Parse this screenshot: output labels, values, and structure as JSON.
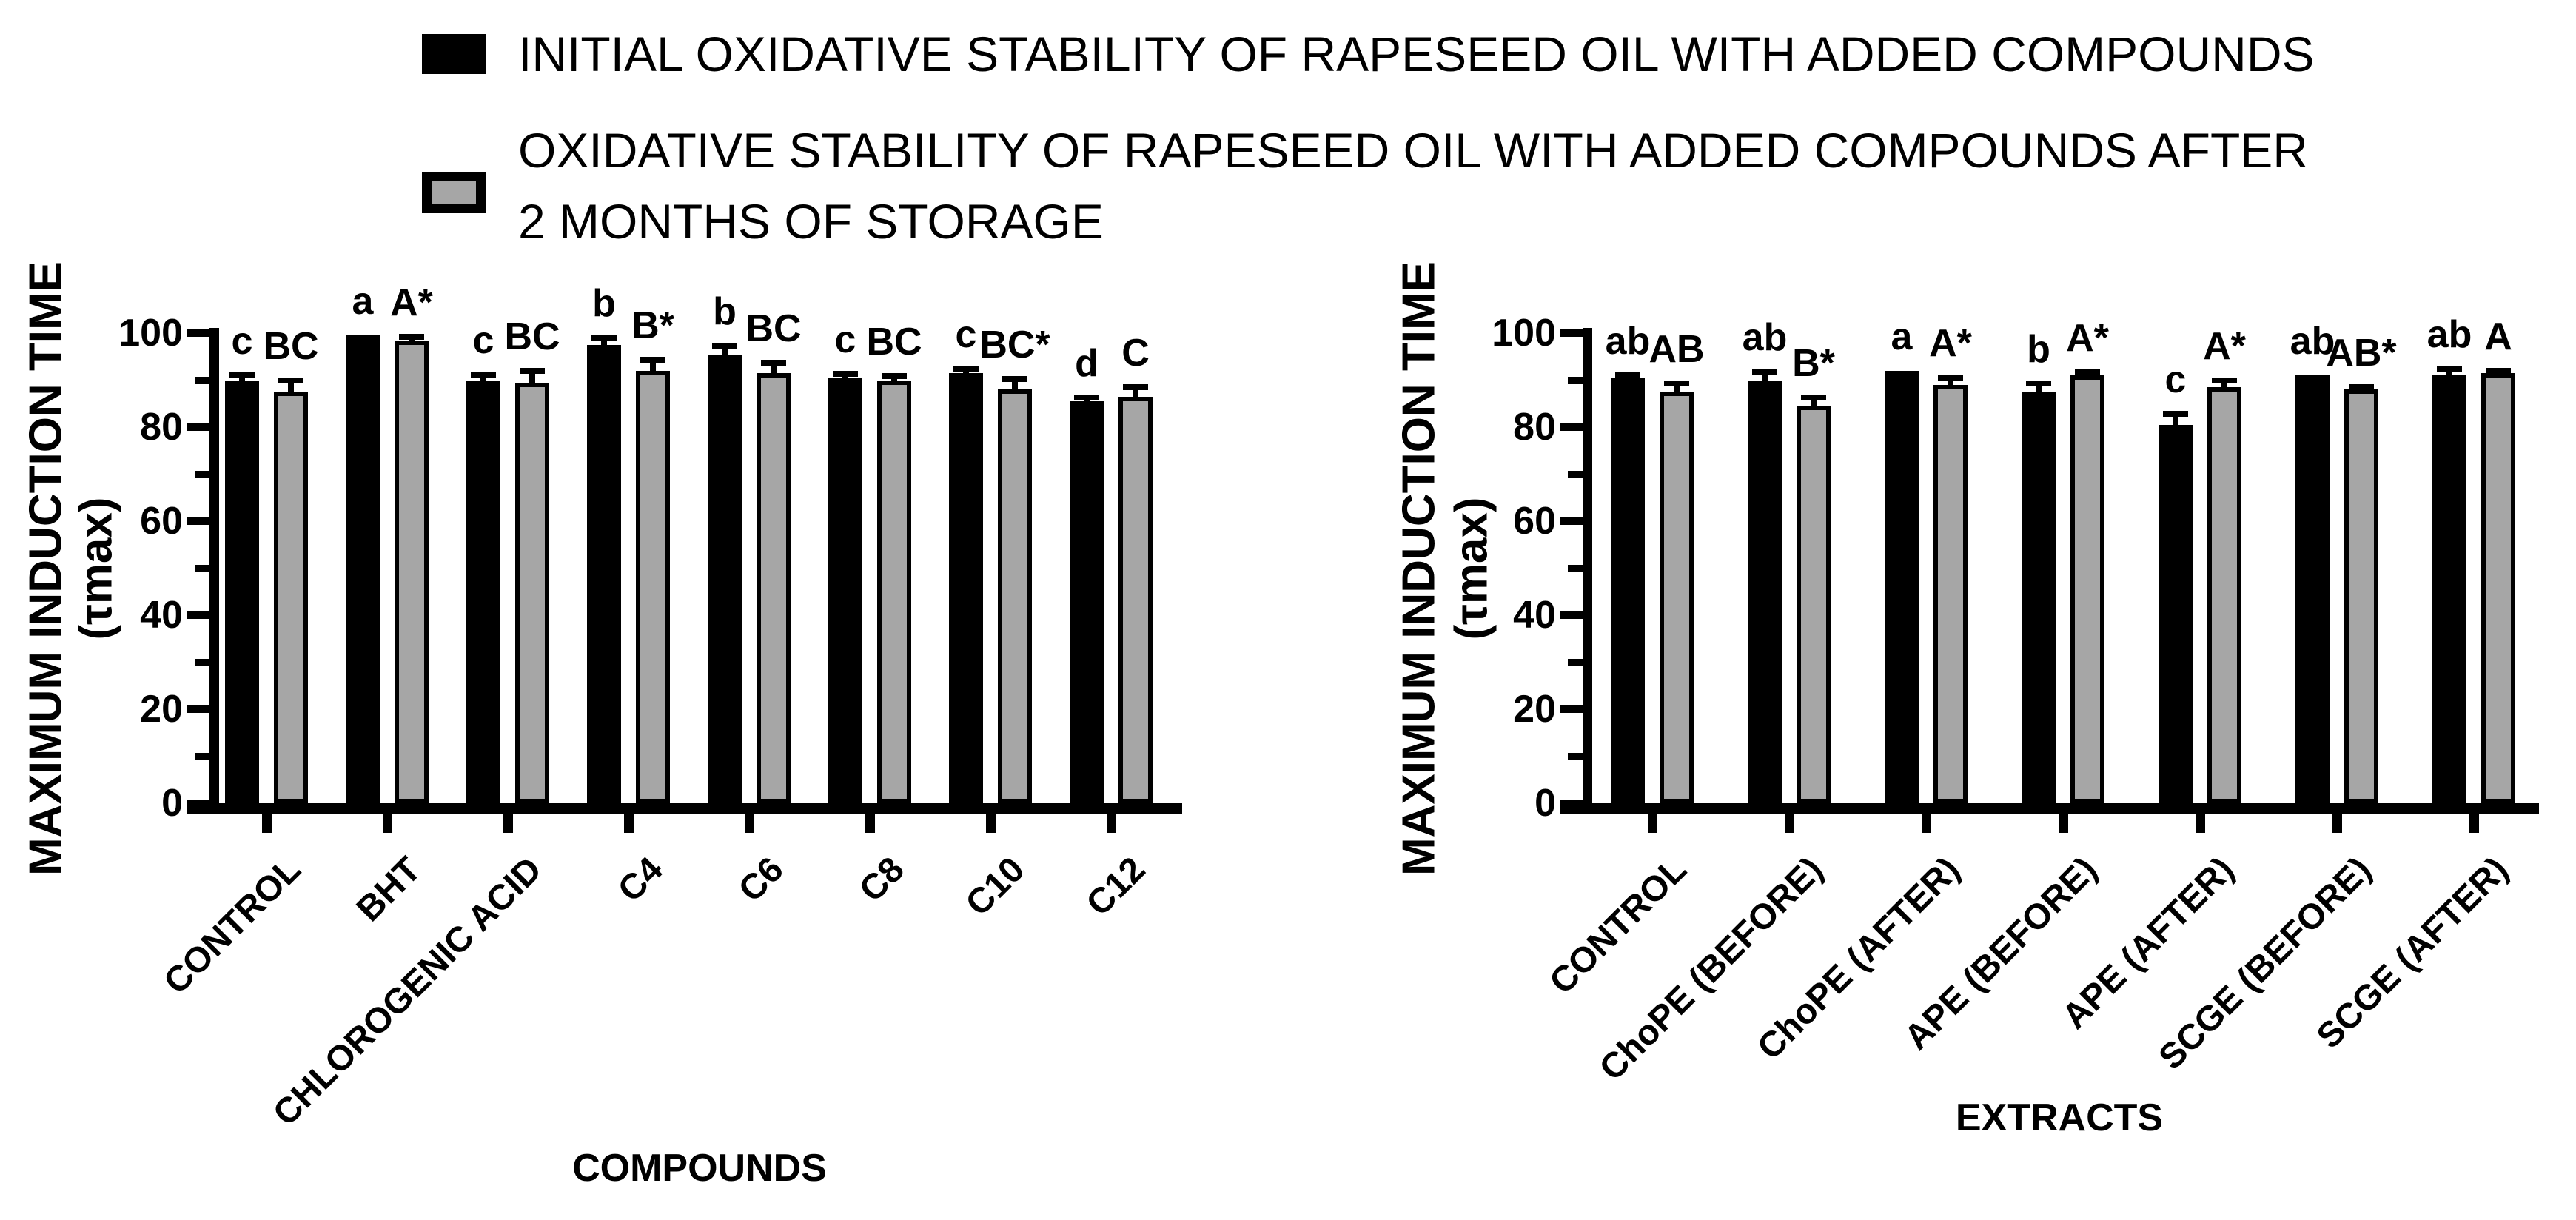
{
  "figure": {
    "background": "#ffffff"
  },
  "colors": {
    "series_initial": "#000000",
    "series_after": "#a6a6a6",
    "axis": "#000000"
  },
  "legend": {
    "position": "top",
    "items": [
      {
        "swatch": "black-filled-square",
        "color": "#000000",
        "lines": [
          "INITIAL OXIDATIVE STABILITY OF RAPESEED OIL WITH ADDED COMPOUNDS"
        ]
      },
      {
        "swatch": "gray-filled-square-black-border",
        "color": "#a6a6a6",
        "lines": [
          "OXIDATIVE STABILITY OF RAPESEED OIL WITH ADDED COMPOUNDS AFTER",
          "2 MONTHS OF STORAGE"
        ]
      }
    ]
  },
  "chart_data": [
    {
      "type": "bar",
      "panel": "left",
      "title": "",
      "xlabel": "COMPOUNDS",
      "ylabel": "MAXIMUM INDUCTION TIME (τmax)",
      "ylabel_lines": [
        "MAXIMUM INDUCTION TIME",
        "(τmax)"
      ],
      "ylim": [
        0,
        100
      ],
      "yticks_major": [
        0,
        20,
        40,
        60,
        80,
        100
      ],
      "yticks_minor": [
        10,
        30,
        50,
        70,
        90
      ],
      "grid": false,
      "legend_position": "top",
      "categories": [
        "CONTROL",
        "BHT",
        "CHLOROGENIC ACID",
        "C4",
        "C6",
        "C8",
        "C10",
        "C12"
      ],
      "series": [
        {
          "name": "INITIAL OXIDATIVE STABILITY OF RAPESEED OIL WITH ADDED COMPOUNDS",
          "color": "#000000",
          "values": [
            90,
            99.5,
            90,
            97.5,
            95.5,
            90.5,
            91.5,
            85.5
          ],
          "errors": [
            1,
            0,
            1.2,
            1.5,
            1.8,
            0.8,
            1,
            0.8
          ],
          "sig_labels": [
            "c",
            "a",
            "c",
            "b",
            "b",
            "c",
            "c",
            "d"
          ]
        },
        {
          "name": "OXIDATIVE STABILITY OF RAPESEED OIL WITH ADDED COMPOUNDS AFTER 2 MONTHS OF STORAGE",
          "color": "#a6a6a6",
          "values": [
            87.5,
            98.5,
            89.5,
            92,
            91.5,
            90,
            88,
            86.5
          ],
          "errors": [
            2.5,
            0.7,
            2.5,
            2.3,
            2.2,
            0.8,
            2.2,
            2
          ],
          "sig_labels": [
            "BC",
            "A*",
            "BC",
            "B*",
            "BC",
            "BC",
            "BC*",
            "C"
          ]
        }
      ]
    },
    {
      "type": "bar",
      "panel": "right",
      "title": "",
      "xlabel": "EXTRACTS",
      "ylabel": "MAXIMUM INDUCTION TIME (τmax)",
      "ylabel_lines": [
        "MAXIMUM INDUCTION TIME",
        "(τmax)"
      ],
      "ylim": [
        0,
        100
      ],
      "yticks_major": [
        0,
        20,
        40,
        60,
        80,
        100
      ],
      "yticks_minor": [
        10,
        30,
        50,
        70,
        90
      ],
      "grid": false,
      "legend_position": "top",
      "categories": [
        "CONTROL",
        "ChoPE (BEFORE)",
        "ChoPE (AFTER)",
        "APE (BEFORE)",
        "APE (AFTER)",
        "SCGE (BEFORE)",
        "SCGE (AFTER)"
      ],
      "series": [
        {
          "name": "INITIAL OXIDATIVE STABILITY OF RAPESEED OIL WITH ADDED COMPOUNDS",
          "color": "#000000",
          "values": [
            90.5,
            90,
            92,
            87.5,
            80.5,
            91,
            91
          ],
          "errors": [
            0.5,
            1.8,
            0,
            1.8,
            2.3,
            0,
            1.5
          ],
          "sig_labels": [
            "ab",
            "ab",
            "a",
            "b",
            "c",
            "ab",
            "ab"
          ]
        },
        {
          "name": "OXIDATIVE STABILITY OF RAPESEED OIL WITH ADDED COMPOUNDS AFTER 2 MONTHS OF STORAGE",
          "color": "#a6a6a6",
          "values": [
            87.5,
            84.5,
            89,
            91,
            88.5,
            88,
            91.5
          ],
          "errors": [
            1.8,
            1.8,
            1.5,
            0.7,
            1.5,
            0.5,
            0.4
          ],
          "sig_labels": [
            "AB",
            "B*",
            "A*",
            "A*",
            "A*",
            "AB*",
            "A"
          ]
        }
      ]
    }
  ]
}
